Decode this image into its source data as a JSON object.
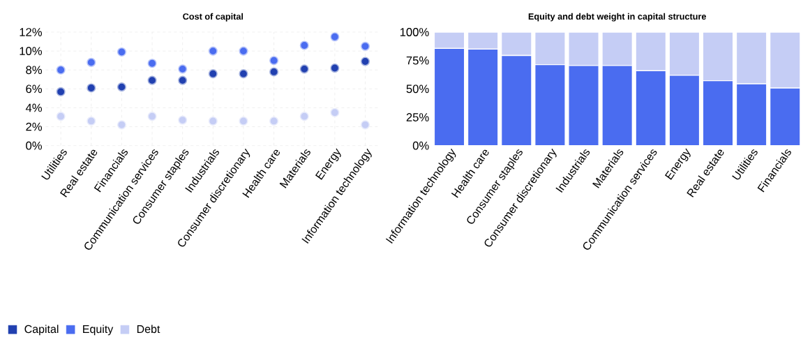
{
  "chart_data": [
    {
      "type": "scatter",
      "title": "Cost of capital",
      "categories": [
        "Utilities",
        "Real estate",
        "Financials",
        "Communication services",
        "Consumer staples",
        "Industrials",
        "Consumer discretionary",
        "Health care",
        "Materials",
        "Energy",
        "Information technology"
      ],
      "series": [
        {
          "name": "Capital",
          "color": "#2140b0",
          "values": [
            5.7,
            6.1,
            6.2,
            6.9,
            6.9,
            7.6,
            7.6,
            7.8,
            8.1,
            8.2,
            8.9
          ]
        },
        {
          "name": "Equity",
          "color": "#4a6cf0",
          "values": [
            8.0,
            8.8,
            9.9,
            8.7,
            8.1,
            10.0,
            10.0,
            9.0,
            10.6,
            11.5,
            10.5
          ]
        },
        {
          "name": "Debt",
          "color": "#c5cdf5",
          "values": [
            3.1,
            2.6,
            2.2,
            3.1,
            2.7,
            2.6,
            2.6,
            2.6,
            3.1,
            3.5,
            2.2
          ]
        }
      ],
      "ylim": [
        0,
        12
      ],
      "yticks": [
        {
          "value": 0,
          "label": "0%"
        },
        {
          "value": 2,
          "label": "2%"
        },
        {
          "value": 4,
          "label": "4%"
        },
        {
          "value": 6,
          "label": "6%"
        },
        {
          "value": 8,
          "label": "8%"
        },
        {
          "value": 10,
          "label": "10%"
        },
        {
          "value": 12,
          "label": "12%"
        }
      ],
      "grid": true,
      "legend": "bottom"
    },
    {
      "type": "bar",
      "title": "Equity and debt weight in capital structure",
      "stacked": true,
      "categories": [
        "Information technology",
        "Health care",
        "Consumer staples",
        "Consumer discretionary",
        "Industrials",
        "Materials",
        "Communication services",
        "Energy",
        "Real estate",
        "Utilities",
        "Financials"
      ],
      "series": [
        {
          "color": "#4a6cf0",
          "values": [
            85.6,
            85,
            79.4,
            71.3,
            70.6,
            70.6,
            66,
            62,
            57.2,
            54.4,
            50.7
          ]
        },
        {
          "color": "#c5cdf5",
          "values": [
            14.4,
            15,
            20.6,
            28.7,
            29.4,
            29.4,
            34,
            38,
            42.8,
            45.6,
            49.3
          ]
        }
      ],
      "ylim": [
        0,
        100
      ],
      "yticks": [
        {
          "value": 0,
          "label": "0%"
        },
        {
          "value": 25,
          "label": "25%"
        },
        {
          "value": 50,
          "label": "50%"
        },
        {
          "value": 75,
          "label": "75%"
        },
        {
          "value": 100,
          "label": "100%"
        }
      ]
    }
  ]
}
